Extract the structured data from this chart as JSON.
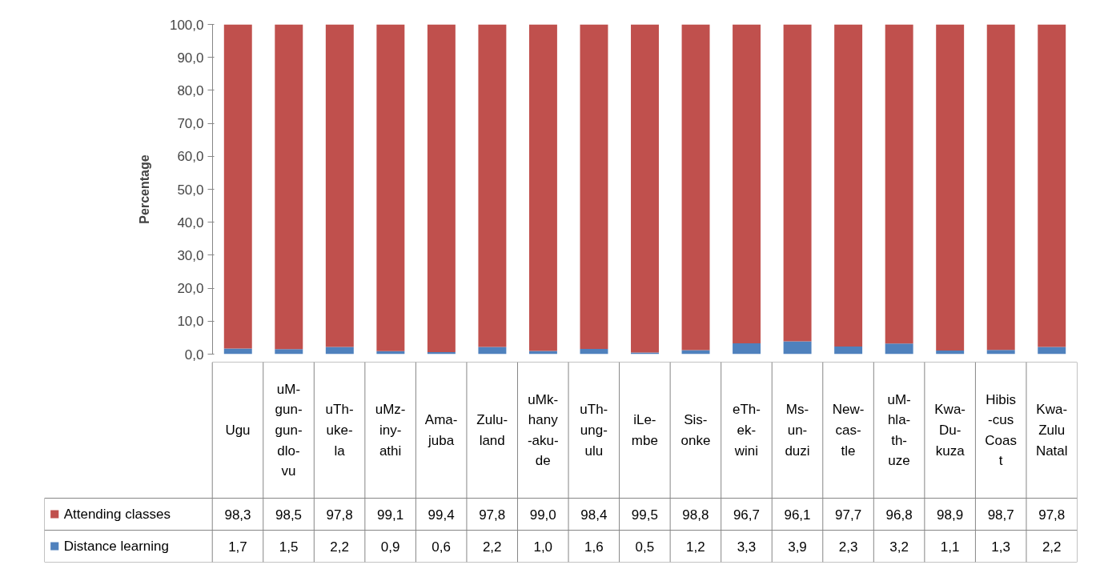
{
  "chart_data": {
    "type": "bar",
    "stacked": true,
    "ylabel": "Percentage",
    "categories": [
      "Ugu",
      "uM-\ngun-\ngun-\ndlo-\nvu",
      "uTh-\nuke-\nla",
      "uMz-\niny-\nathi",
      "Ama-\njuba",
      "Zulu-\nland",
      "uMk-\nhany\n-aku-\nde",
      "uTh-\nung-\nulu",
      "iLe-\nmbe",
      "Sis-\nonke",
      "eTh-\nek-\nwini",
      "Ms-\nun-\nduzi",
      "New-\ncas-\ntle",
      "uM-\nhla-\nth-\nuze",
      "Kwa-\nDu-\nkuza",
      "Hibis\n-cus\nCoas\nt",
      "Kwa-\nZulu\nNatal"
    ],
    "series": [
      {
        "name": "Distance learning",
        "color": "#4f81bd",
        "values": [
          1.7,
          1.5,
          2.2,
          0.9,
          0.6,
          2.2,
          1.0,
          1.6,
          0.5,
          1.2,
          3.3,
          3.9,
          2.3,
          3.2,
          1.1,
          1.3,
          2.2
        ],
        "value_labels": [
          "1,7",
          "1,5",
          "2,2",
          "0,9",
          "0,6",
          "2,2",
          "1,0",
          "1,6",
          "0,5",
          "1,2",
          "3,3",
          "3,9",
          "2,3",
          "3,2",
          "1,1",
          "1,3",
          "2,2"
        ]
      },
      {
        "name": "Attending classes",
        "color": "#c0504d",
        "values": [
          98.3,
          98.5,
          97.8,
          99.1,
          99.4,
          97.8,
          99.0,
          98.4,
          99.5,
          98.8,
          96.7,
          96.1,
          97.7,
          96.8,
          98.9,
          98.7,
          97.8
        ],
        "value_labels": [
          "98,3",
          "98,5",
          "97,8",
          "99,1",
          "99,4",
          "97,8",
          "99,0",
          "98,4",
          "99,5",
          "98,8",
          "96,7",
          "96,1",
          "97,7",
          "96,8",
          "98,9",
          "98,7",
          "97,8"
        ]
      }
    ],
    "ylim": [
      0,
      100
    ],
    "yticks": [
      {
        "value": 0,
        "label": "0,0"
      },
      {
        "value": 10,
        "label": "10,0"
      },
      {
        "value": 20,
        "label": "20,0"
      },
      {
        "value": 30,
        "label": "30,0"
      },
      {
        "value": 40,
        "label": "40,0"
      },
      {
        "value": 50,
        "label": "50,0"
      },
      {
        "value": 60,
        "label": "60,0"
      },
      {
        "value": 70,
        "label": "70,0"
      },
      {
        "value": 80,
        "label": "80,0"
      },
      {
        "value": 90,
        "label": "90,0"
      },
      {
        "value": 100,
        "label": "100,0"
      }
    ],
    "grid": false,
    "legend": "bottom"
  }
}
